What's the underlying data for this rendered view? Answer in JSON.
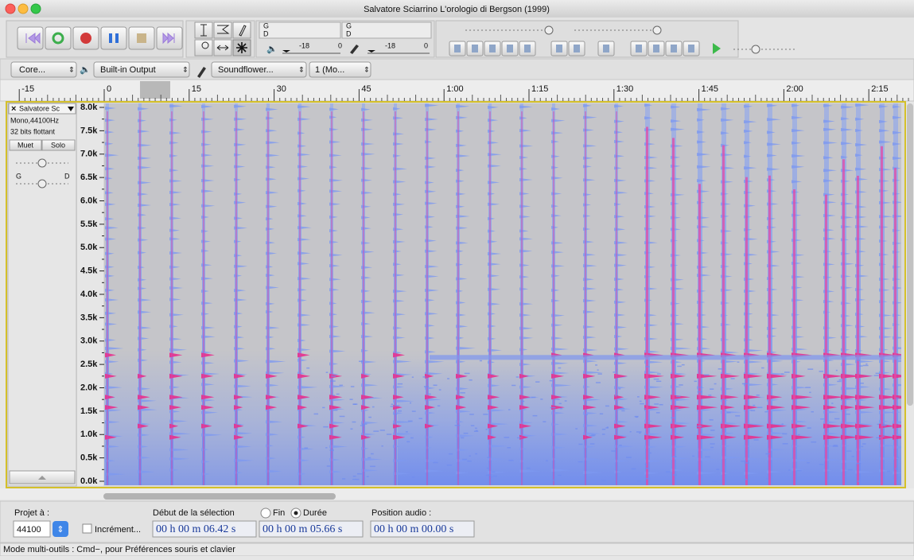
{
  "window": {
    "title": "Salvatore Sciarrino  L'orologio di Bergson (1999)"
  },
  "meters": {
    "play": {
      "left": "G",
      "right": "D",
      "scale": [
        "-18",
        "0"
      ]
    },
    "record": {
      "left": "G",
      "right": "D",
      "scale": [
        "-18",
        "0"
      ]
    }
  },
  "device_toolbar": {
    "host": "Core...",
    "output": "Built-in Output",
    "input": "Soundflower...",
    "channels": "1 (Mo..."
  },
  "ruler": {
    "labels": [
      "-15",
      "0",
      "15",
      "30",
      "45",
      "1:00",
      "1:15",
      "1:30",
      "1:45",
      "2:00",
      "2:15"
    ]
  },
  "track": {
    "name": "Salvatore Sc",
    "format": "Mono,44100Hz",
    "sample_format": "32 bits flottant",
    "mute": "Muet",
    "solo": "Solo",
    "pan_left": "G",
    "pan_right": "D"
  },
  "frequency_axis": {
    "labels": [
      "8.0k",
      "7.5k",
      "7.0k",
      "6.5k",
      "6.0k",
      "5.5k",
      "5.0k",
      "4.5k",
      "4.0k",
      "3.5k",
      "3.0k",
      "2.5k",
      "2.0k",
      "1.5k",
      "1.0k",
      "0.5k",
      "0.0k"
    ]
  },
  "selection_bar": {
    "project_rate_label": "Projet à :",
    "project_rate": "44100",
    "snap": "Incrément...",
    "selection_start_label": "Début de la sélection",
    "end_option": "Fin",
    "length_option": "Durée",
    "audio_position_label": "Position audio :",
    "selection_start": "00 h 00 m 06.42 s",
    "selection_length": "00 h 00 m 05.66 s",
    "audio_position": "00 h 00 m 00.00 s"
  },
  "status": "Mode multi-outils : Cmd−, pour Préférences souris et clavier"
}
